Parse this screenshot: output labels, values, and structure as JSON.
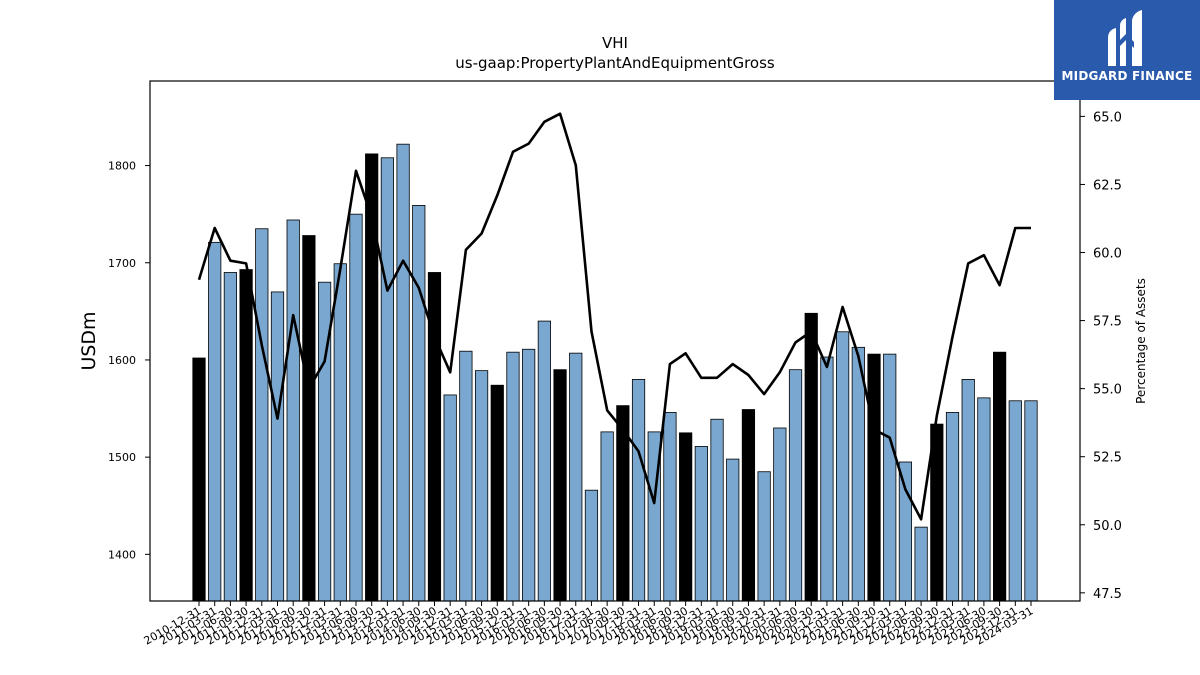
{
  "chart_data": {
    "type": "bar+line",
    "title": "VHI",
    "subtitle": "us-gaap:PropertyPlantAndEquipmentGross",
    "ylabel": "USDm",
    "y2label": "Percentage of Assets",
    "ylim": [
      1352,
      1887
    ],
    "y2lim": [
      47.2,
      66.3
    ],
    "yticks": [
      1400,
      1500,
      1600,
      1700,
      1800
    ],
    "y2ticks": [
      "47.5",
      "50.0",
      "52.5",
      "55.0",
      "57.5",
      "60.0",
      "62.5",
      "65.0"
    ],
    "categories": [
      "2010-12-31",
      "2011-03-31",
      "2011-06-30",
      "2011-09-30",
      "2011-12-31",
      "2012-03-31",
      "2012-06-30",
      "2012-09-30",
      "2012-12-31",
      "2013-03-31",
      "2013-06-30",
      "2013-09-30",
      "2013-12-31",
      "2014-03-31",
      "2014-06-30",
      "2014-09-30",
      "2014-12-31",
      "2015-03-31",
      "2015-06-30",
      "2015-09-30",
      "2015-12-31",
      "2016-03-31",
      "2016-06-30",
      "2016-09-30",
      "2016-12-31",
      "2017-03-31",
      "2017-06-30",
      "2017-09-30",
      "2017-12-31",
      "2018-03-31",
      "2018-06-30",
      "2018-09-30",
      "2018-12-31",
      "2019-03-31",
      "2019-06-30",
      "2019-09-30",
      "2019-12-31",
      "2020-03-31",
      "2020-06-30",
      "2020-09-30",
      "2020-12-31",
      "2021-03-31",
      "2021-06-30",
      "2021-09-30",
      "2021-12-31",
      "2022-03-31",
      "2022-06-30",
      "2022-09-30",
      "2022-12-31",
      "2023-03-31",
      "2023-06-30",
      "2023-09-30",
      "2023-12-31",
      "2024-03-31"
    ],
    "series": [
      {
        "kind": "bar",
        "values": [
          1602,
          1721,
          1690,
          1693,
          1735,
          1670,
          1744,
          1728,
          1680,
          1699,
          1750,
          1812,
          1808,
          1822,
          1759,
          1690,
          1564,
          1609,
          1589,
          1574,
          1608,
          1611,
          1640,
          1590,
          1607,
          1466,
          1526,
          1553,
          1580,
          1526,
          1546,
          1525,
          1511,
          1539,
          1498,
          1549,
          1485,
          1530,
          1590,
          1648,
          1603,
          1629,
          1613,
          1606,
          1606,
          1495,
          1428,
          1534,
          1546,
          1580,
          1561,
          1608,
          1558,
          1558
        ],
        "highlight": [
          true,
          false,
          false,
          true,
          false,
          false,
          false,
          true,
          false,
          false,
          false,
          true,
          false,
          false,
          false,
          true,
          false,
          false,
          false,
          true,
          false,
          false,
          false,
          true,
          false,
          false,
          false,
          true,
          false,
          false,
          false,
          true,
          false,
          false,
          false,
          true,
          false,
          false,
          false,
          true,
          false,
          false,
          false,
          true,
          false,
          false,
          false,
          true,
          false,
          false,
          false,
          true,
          false,
          false
        ]
      },
      {
        "kind": "line",
        "axis": "right",
        "values": [
          59.0,
          60.9,
          59.7,
          59.6,
          56.6,
          53.9,
          57.7,
          55.0,
          56.0,
          59.4,
          63.0,
          61.3,
          58.6,
          59.7,
          58.7,
          56.9,
          55.6,
          60.1,
          60.7,
          62.1,
          63.7,
          64.0,
          64.8,
          65.1,
          63.2,
          57.1,
          54.2,
          53.5,
          52.7,
          50.8,
          55.9,
          56.3,
          55.4,
          55.4,
          55.9,
          55.5,
          54.8,
          55.6,
          56.7,
          57.1,
          55.8,
          58.0,
          56.2,
          53.5,
          53.2,
          51.3,
          50.2,
          54.0,
          56.9,
          59.6,
          59.9,
          58.8,
          60.9,
          60.9
        ]
      }
    ],
    "colors": {
      "bar": "#7aa7cf",
      "bar_highlight": "#000000",
      "line": "#000000"
    }
  },
  "logo": {
    "text": "MIDGARD FINANCE",
    "color": "#2a5aab"
  }
}
